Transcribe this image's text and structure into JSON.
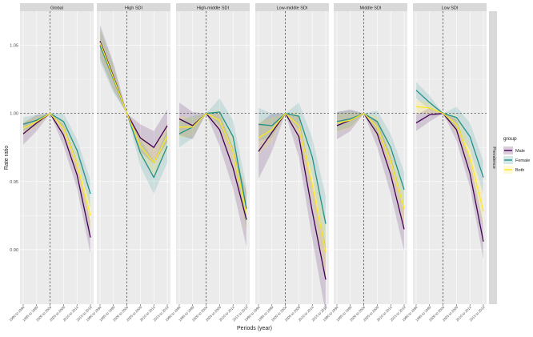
{
  "chart_data": {
    "type": "line",
    "facet_labels": [
      "Global",
      "High SDI",
      "High-middle SDI",
      "Low-middle SDI",
      "Middle SDI",
      "Low SDI"
    ],
    "strip_right_label": "Prevalence",
    "categories": [
      "1990 to 1994",
      "1995 to 1999",
      "2000 to 2004",
      "2005 to 2009",
      "2010 to 2014",
      "2015 to 2019"
    ],
    "ylabel": "Rate ratio",
    "xlabel": "Periods (year)",
    "y_ticks": [
      0.9,
      0.95,
      1.0,
      1.05
    ],
    "y_tick_labels": [
      "0.90",
      "0.95",
      "1.00",
      "1.05"
    ],
    "ylim": [
      0.86,
      1.075
    ],
    "reference_line": {
      "y": 1.0,
      "x_category": "2000 to 2004",
      "style": "dashed"
    },
    "legend": {
      "title": "group",
      "position": "right",
      "entries": [
        "Male",
        "Female",
        "Both"
      ]
    },
    "colors": {
      "Male": "#440154",
      "Female": "#21908C",
      "Both": "#FDE725",
      "panel_bg": "#EBEBEB",
      "strip_bg": "#D9D9D9",
      "grid": "#FFFFFF"
    },
    "facets": [
      {
        "name": "Global",
        "series": [
          {
            "name": "Male",
            "values": [
              0.985,
              0.993,
              1.0,
              0.984,
              0.955,
              0.909
            ],
            "band": [
              0.008,
              0.006,
              0.0,
              0.008,
              0.01,
              0.012
            ]
          },
          {
            "name": "Female",
            "values": [
              0.992,
              0.995,
              1.0,
              0.994,
              0.973,
              0.941
            ],
            "band": [
              0.005,
              0.004,
              0.0,
              0.006,
              0.008,
              0.01
            ]
          },
          {
            "name": "Both",
            "values": [
              0.989,
              0.994,
              1.0,
              0.989,
              0.963,
              0.925
            ],
            "band": [
              0.005,
              0.004,
              0.0,
              0.006,
              0.008,
              0.01
            ]
          }
        ]
      },
      {
        "name": "High SDI",
        "series": [
          {
            "name": "Male",
            "values": [
              1.053,
              1.027,
              1.0,
              0.982,
              0.975,
              0.991
            ],
            "band": [
              0.012,
              0.01,
              0.0,
              0.01,
              0.012,
              0.012
            ]
          },
          {
            "name": "Female",
            "values": [
              1.05,
              1.025,
              1.0,
              0.971,
              0.953,
              0.976
            ],
            "band": [
              0.012,
              0.01,
              0.0,
              0.01,
              0.012,
              0.012
            ]
          },
          {
            "name": "Both",
            "values": [
              1.052,
              1.026,
              1.0,
              0.976,
              0.964,
              0.983
            ],
            "band": [
              0.01,
              0.008,
              0.0,
              0.008,
              0.01,
              0.01
            ]
          }
        ]
      },
      {
        "name": "High-middle SDI",
        "series": [
          {
            "name": "Male",
            "values": [
              0.996,
              0.991,
              1.0,
              0.988,
              0.96,
              0.922
            ],
            "band": [
              0.012,
              0.01,
              0.0,
              0.012,
              0.015,
              0.02
            ]
          },
          {
            "name": "Female",
            "values": [
              0.985,
              0.99,
              1.0,
              1.001,
              0.983,
              0.93
            ],
            "band": [
              0.01,
              0.008,
              0.0,
              0.01,
              0.012,
              0.016
            ]
          },
          {
            "name": "Both",
            "values": [
              0.99,
              0.99,
              1.0,
              0.995,
              0.972,
              0.926
            ],
            "band": [
              0.008,
              0.007,
              0.0,
              0.008,
              0.01,
              0.014
            ]
          }
        ]
      },
      {
        "name": "Low-middle SDI",
        "series": [
          {
            "name": "Male",
            "values": [
              0.972,
              0.986,
              1.0,
              0.983,
              0.928,
              0.878
            ],
            "band": [
              0.02,
              0.014,
              0.0,
              0.015,
              0.02,
              0.025
            ]
          },
          {
            "name": "Female",
            "values": [
              0.992,
              0.991,
              1.0,
              0.998,
              0.968,
              0.919
            ],
            "band": [
              0.012,
              0.009,
              0.0,
              0.01,
              0.014,
              0.02
            ]
          },
          {
            "name": "Both",
            "values": [
              0.982,
              0.988,
              1.0,
              0.991,
              0.948,
              0.898
            ],
            "band": [
              0.012,
              0.009,
              0.0,
              0.01,
              0.014,
              0.02
            ]
          }
        ]
      },
      {
        "name": "Middle SDI",
        "series": [
          {
            "name": "Male",
            "values": [
              0.991,
              0.995,
              1.0,
              0.985,
              0.955,
              0.915
            ],
            "band": [
              0.01,
              0.008,
              0.0,
              0.01,
              0.014,
              0.016
            ]
          },
          {
            "name": "Female",
            "values": [
              0.994,
              0.996,
              1.0,
              0.994,
              0.975,
              0.944
            ],
            "band": [
              0.007,
              0.006,
              0.0,
              0.008,
              0.01,
              0.013
            ]
          },
          {
            "name": "Both",
            "values": [
              0.993,
              0.995,
              1.0,
              0.99,
              0.965,
              0.93
            ],
            "band": [
              0.007,
              0.006,
              0.0,
              0.008,
              0.01,
              0.013
            ]
          }
        ]
      },
      {
        "name": "Low SDI",
        "series": [
          {
            "name": "Male",
            "values": [
              0.993,
              0.999,
              1.0,
              0.988,
              0.956,
              0.906
            ],
            "band": [
              0.006,
              0.005,
              0.0,
              0.008,
              0.01,
              0.013
            ]
          },
          {
            "name": "Female",
            "values": [
              1.017,
              1.008,
              1.0,
              0.997,
              0.983,
              0.953
            ],
            "band": [
              0.006,
              0.005,
              0.0,
              0.008,
              0.01,
              0.012
            ]
          },
          {
            "name": "Both",
            "values": [
              1.005,
              1.004,
              1.0,
              0.992,
              0.968,
              0.928
            ],
            "band": [
              0.005,
              0.004,
              0.0,
              0.007,
              0.009,
              0.012
            ]
          }
        ]
      }
    ]
  }
}
